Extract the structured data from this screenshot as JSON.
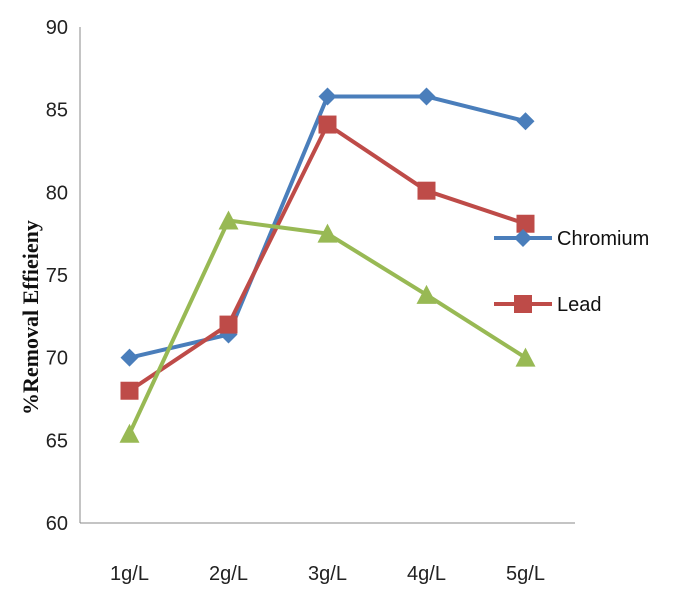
{
  "chart_data": {
    "type": "line",
    "title": "",
    "xlabel": "",
    "ylabel": "%Removal Effieieny",
    "categories": [
      "1g/L",
      "2g/L",
      "3g/L",
      "4g/L",
      "5g/L"
    ],
    "ylim": [
      60,
      90
    ],
    "yticks": [
      60,
      65,
      70,
      75,
      80,
      85,
      90
    ],
    "ytick_labels": [
      "60",
      "65",
      "70",
      "75",
      "80",
      "85",
      "90"
    ],
    "grid": false,
    "legend_position": "right",
    "series": [
      {
        "name": "Chromium",
        "color": "#4a7ebb",
        "marker": "diamond",
        "values": [
          70.0,
          71.4,
          85.8,
          85.8,
          84.3
        ]
      },
      {
        "name": "Lead",
        "color": "#be4b48",
        "marker": "square",
        "values": [
          68.0,
          72.0,
          84.1,
          80.1,
          78.1
        ]
      },
      {
        "name": "",
        "color": "#98b954",
        "marker": "triangle",
        "values": [
          65.4,
          78.3,
          77.5,
          73.8,
          70.0
        ]
      }
    ]
  }
}
